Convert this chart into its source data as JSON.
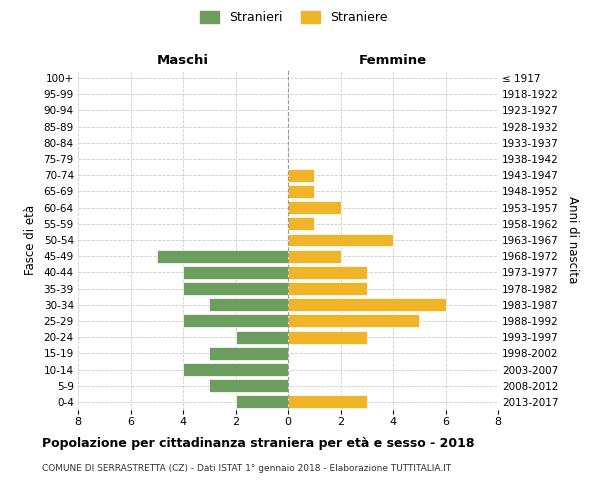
{
  "age_groups": [
    "0-4",
    "5-9",
    "10-14",
    "15-19",
    "20-24",
    "25-29",
    "30-34",
    "35-39",
    "40-44",
    "45-49",
    "50-54",
    "55-59",
    "60-64",
    "65-69",
    "70-74",
    "75-79",
    "80-84",
    "85-89",
    "90-94",
    "95-99",
    "100+"
  ],
  "birth_years": [
    "2013-2017",
    "2008-2012",
    "2003-2007",
    "1998-2002",
    "1993-1997",
    "1988-1992",
    "1983-1987",
    "1978-1982",
    "1973-1977",
    "1968-1972",
    "1963-1967",
    "1958-1962",
    "1953-1957",
    "1948-1952",
    "1943-1947",
    "1938-1942",
    "1933-1937",
    "1928-1932",
    "1923-1927",
    "1918-1922",
    "≤ 1917"
  ],
  "males": [
    2,
    3,
    4,
    3,
    2,
    4,
    3,
    4,
    4,
    5,
    0,
    0,
    0,
    0,
    0,
    0,
    0,
    0,
    0,
    0,
    0
  ],
  "females": [
    3,
    0,
    0,
    0,
    3,
    5,
    6,
    3,
    3,
    2,
    4,
    1,
    2,
    1,
    1,
    0,
    0,
    0,
    0,
    0,
    0
  ],
  "male_color": "#6b9e5e",
  "female_color": "#f0b429",
  "bar_edge_color": "#ffffff",
  "grid_color": "#cccccc",
  "grid_linestyle": "--",
  "background_color": "#ffffff",
  "title": "Popolazione per cittadinanza straniera per età e sesso - 2018",
  "subtitle": "COMUNE DI SERRASTRETTA (CZ) - Dati ISTAT 1° gennaio 2018 - Elaborazione TUTTITALIA.IT",
  "ylabel_left": "Fasce di età",
  "ylabel_right": "Anni di nascita",
  "xlabel_maschi": "Maschi",
  "xlabel_femmine": "Femmine",
  "legend_males": "Stranieri",
  "legend_females": "Straniere",
  "xlim": 8,
  "bar_height": 0.8
}
